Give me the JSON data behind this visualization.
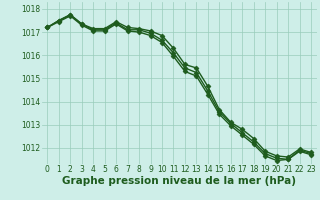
{
  "xlabel": "Graphe pression niveau de la mer (hPa)",
  "background_color": "#ceeee8",
  "grid_color": "#99ccbb",
  "line_color": "#1e5c1e",
  "x": [
    0,
    1,
    2,
    3,
    4,
    5,
    6,
    7,
    8,
    9,
    10,
    11,
    12,
    13,
    14,
    15,
    16,
    17,
    18,
    19,
    20,
    21,
    22,
    23
  ],
  "line1": [
    1017.2,
    1017.5,
    1017.75,
    1017.35,
    1017.15,
    1017.15,
    1017.45,
    1017.2,
    1017.15,
    1017.05,
    1016.85,
    1016.3,
    1015.6,
    1015.45,
    1014.65,
    1013.65,
    1013.1,
    1012.8,
    1012.4,
    1011.85,
    1011.65,
    1011.6,
    1011.95,
    1011.8
  ],
  "line2": [
    1017.2,
    1017.5,
    1017.75,
    1017.35,
    1017.1,
    1017.1,
    1017.4,
    1017.1,
    1017.1,
    1016.95,
    1016.65,
    1016.1,
    1015.45,
    1015.25,
    1014.45,
    1013.55,
    1013.05,
    1012.65,
    1012.25,
    1011.75,
    1011.55,
    1011.5,
    1011.85,
    1011.7
  ],
  "line3": [
    1017.2,
    1017.45,
    1017.7,
    1017.3,
    1017.05,
    1017.05,
    1017.35,
    1017.05,
    1017.0,
    1016.85,
    1016.55,
    1015.95,
    1015.3,
    1015.1,
    1014.3,
    1013.45,
    1012.95,
    1012.55,
    1012.15,
    1011.65,
    1011.45,
    1011.5,
    1011.9,
    1011.75
  ],
  "ylim_min": 1011.3,
  "ylim_max": 1018.3,
  "yticks": [
    1012,
    1013,
    1014,
    1015,
    1016,
    1017,
    1018
  ],
  "marker": "D",
  "marker_size": 2.5,
  "line_width": 1.0,
  "xlabel_fontsize": 7.5,
  "tick_fontsize": 5.5
}
